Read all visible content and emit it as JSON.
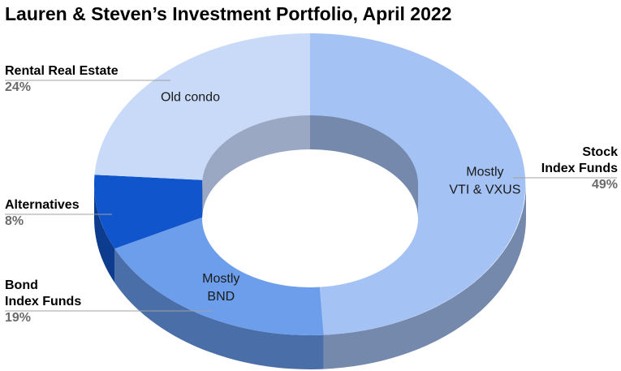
{
  "chart_data": {
    "type": "pie",
    "title": "Lauren & Steven’s Investment Portfolio, April 2022",
    "style": "3d-donut",
    "slices": [
      {
        "label": "Stock Index Funds",
        "label_lines": [
          "Stock",
          "Index Funds"
        ],
        "value": 49,
        "value_text": "49%",
        "note_lines": [
          "Mostly",
          "VTI & VXUS"
        ],
        "color": "#a4c2f4",
        "side_color": "#7589ad"
      },
      {
        "label": "Bond Index Funds",
        "label_lines": [
          "Bond",
          "Index Funds"
        ],
        "value": 19,
        "value_text": "19%",
        "note_lines": [
          "Mostly",
          "BND"
        ],
        "color": "#6d9eeb",
        "side_color": "#4a6ea8"
      },
      {
        "label": "Alternatives",
        "label_lines": [
          "Alternatives"
        ],
        "value": 8,
        "value_text": "8%",
        "note_lines": [],
        "color": "#1155cc",
        "side_color": "#0d3b8e"
      },
      {
        "label": "Rental Real Estate",
        "label_lines": [
          "Rental Real Estate"
        ],
        "value": 24,
        "value_text": "24%",
        "note_lines": [
          "Old condo"
        ],
        "color": "#c9daf8",
        "side_color": "#9aa8c4"
      }
    ]
  }
}
